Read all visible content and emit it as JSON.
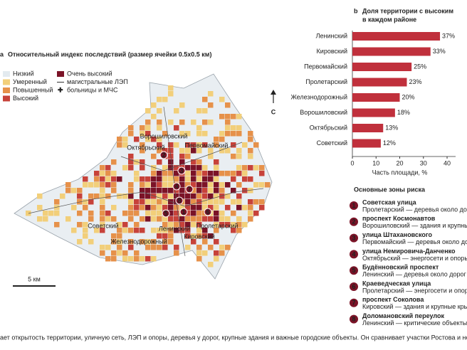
{
  "map": {
    "panel": "a",
    "title": "Относительный индекс последствий (размер ячейки 0.5х0.5 км)",
    "legend": [
      {
        "label": "Низкий",
        "color": "#e3eaef"
      },
      {
        "label": "Умеренный",
        "color": "#f2cf7a"
      },
      {
        "label": "Повышенный",
        "color": "#e6914a"
      },
      {
        "label": "Высокий",
        "color": "#c7423a"
      },
      {
        "label": "Очень высокий",
        "color": "#7b1327"
      }
    ],
    "line_legend": "магистральные ЛЭП",
    "hospital_legend": "больницы и МЧС",
    "north": "С",
    "scale": "5 км",
    "districts": [
      "Ворошиловский",
      "Октябрьский",
      "Первомайский",
      "Советский",
      "Ленинский",
      "Кировский",
      "Пролетарский",
      "Железнодорожный"
    ]
  },
  "chart_data": {
    "type": "bar",
    "panel": "b",
    "title_lines": [
      "Доля территории с высоким",
      "в каждом районе"
    ],
    "categories": [
      "Ленинский",
      "Кировский",
      "Первомайский",
      "Пролетарский",
      "Железнодорожный",
      "Ворошиловский",
      "Октябрьский",
      "Советский"
    ],
    "values": [
      37,
      33,
      25,
      23,
      20,
      18,
      13,
      12
    ],
    "value_labels": [
      "37%",
      "33%",
      "25%",
      "23%",
      "20%",
      "18%",
      "13%",
      "12%"
    ],
    "color": "#c0303c",
    "xlim": [
      0,
      43
    ],
    "xticks": [
      0,
      10,
      20,
      30,
      40
    ],
    "xlabel": "Часть площади, %",
    "grid": false
  },
  "risk_zones": {
    "title": "Основные зоны риска",
    "items": [
      {
        "number": "1",
        "name": "Советская улица",
        "detail": "Пролетарский — деревья около дорог"
      },
      {
        "number": "2",
        "name": "проспект Космонавтов",
        "detail": "Ворошиловский — здания и крупные крыши"
      },
      {
        "number": "3",
        "name": "улица Штахановского",
        "detail": "Первомайский — деревья около дорог"
      },
      {
        "number": "4",
        "name": "улица Немировича-Данченко",
        "detail": "Октябрьский — энергосети и опоры"
      },
      {
        "number": "5",
        "name": "Будённовский проспект",
        "detail": "Ленинский — деревья около дорог"
      },
      {
        "number": "6",
        "name": "Краеведческая улица",
        "detail": "Пролетарский — энергосети и опоры"
      },
      {
        "number": "7",
        "name": "проспект Соколова",
        "detail": "Кировский — здания и крупные крыши"
      },
      {
        "number": "8",
        "name": "Доломановский переулок",
        "detail": "Ленинский — критические объекты"
      }
    ]
  },
  "footer": "ает открытость территории, уличную сеть, ЛЭП и опоры, деревья у дорог, крупные здания и важные городские объекты. Он сравнивает участки Ростова и не показывает вероят"
}
